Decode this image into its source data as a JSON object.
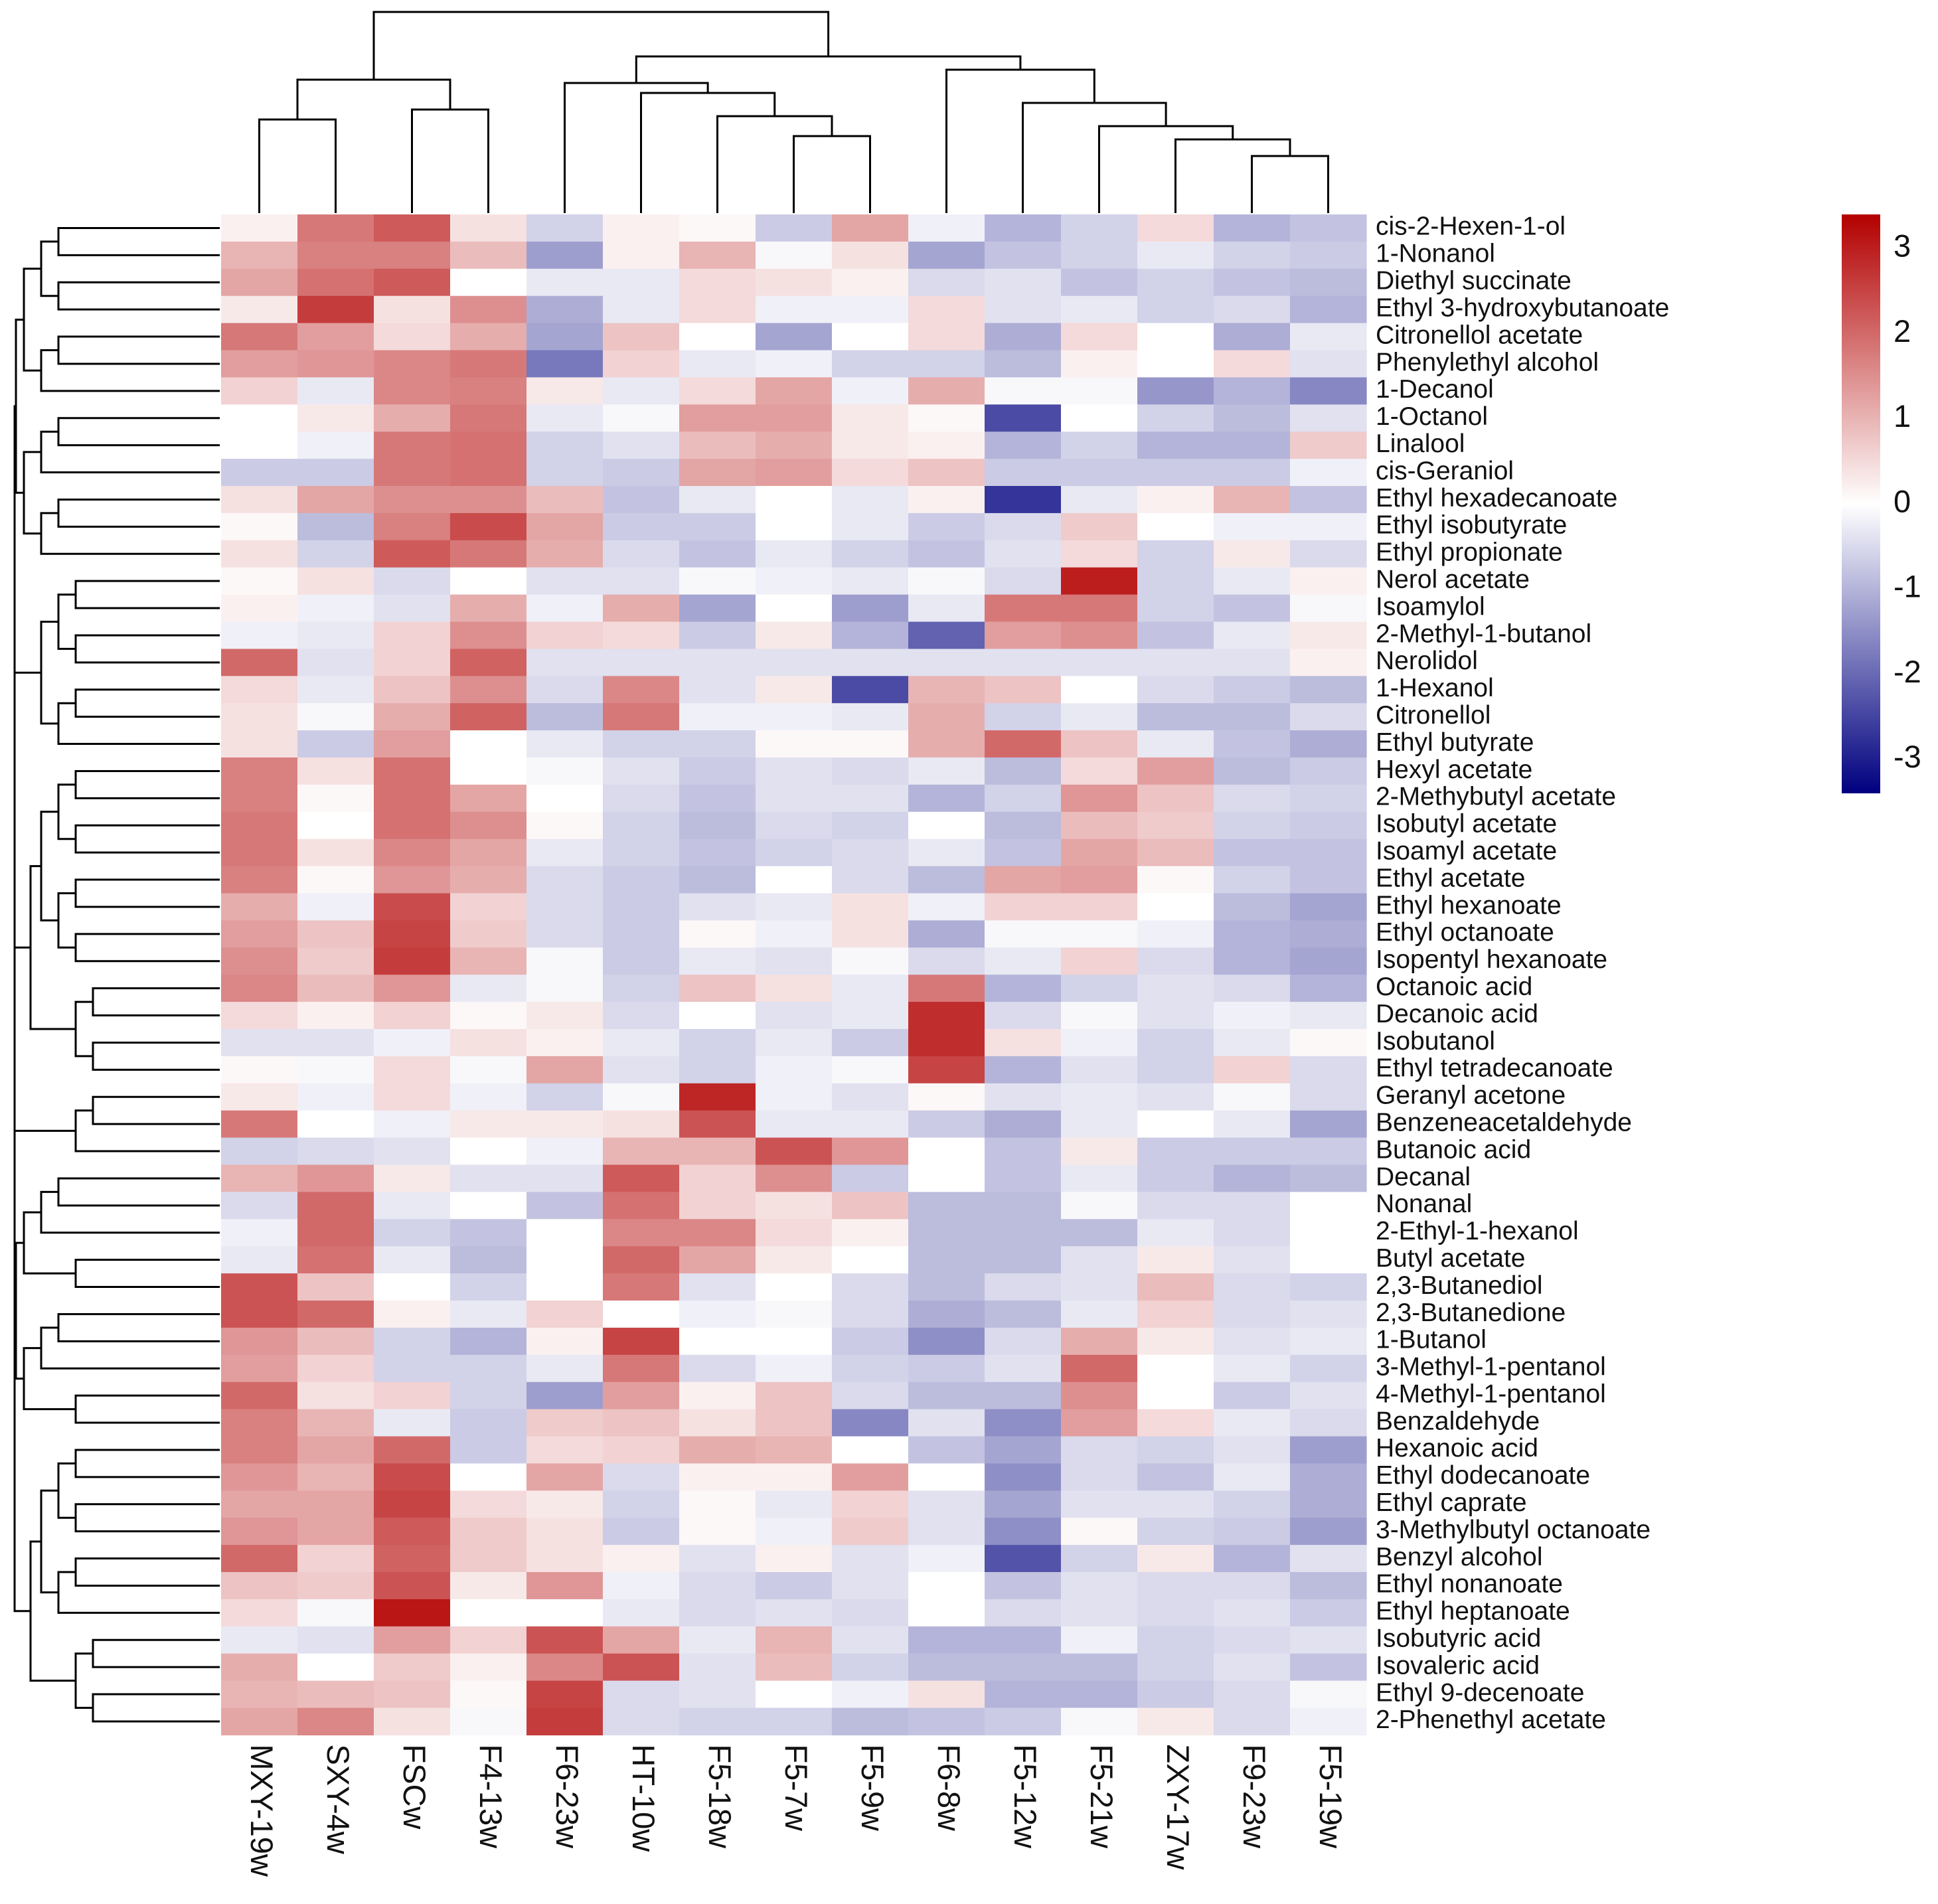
{
  "chart_data": {
    "type": "heatmap",
    "columns": [
      "MXY-19w",
      "SXY-4w",
      "FSCw",
      "F4-13w",
      "F6-23w",
      "HT-10w",
      "F5-18w",
      "F5-7w",
      "F5-9w",
      "F6-8w",
      "F5-12w",
      "F5-21w",
      "ZXY-17w",
      "F9-23w",
      "F5-19w"
    ],
    "rows": [
      "cis-2-Hexen-1-ol",
      "1-Nonanol",
      "Diethyl succinate",
      "Ethyl 3-hydroxybutanoate",
      "Citronellol acetate",
      "Phenylethyl alcohol",
      "1-Decanol",
      "1-Octanol",
      "Linalool",
      "cis-Geraniol",
      "Ethyl hexadecanoate",
      "Ethyl isobutyrate",
      "Ethyl propionate",
      "Nerol acetate",
      "Isoamylol",
      "2-Methyl-1-butanol",
      "Nerolidol",
      "1-Hexanol",
      "Citronellol",
      "Ethyl butyrate",
      "Hexyl acetate",
      "2-Methybutyl acetate",
      "Isobutyl acetate",
      "Isoamyl acetate",
      "Ethyl acetate",
      "Ethyl hexanoate",
      "Ethyl octanoate",
      "Isopentyl hexanoate",
      "Octanoic acid",
      "Decanoic acid",
      "Isobutanol",
      "Ethyl tetradecanoate",
      "Geranyl acetone",
      "Benzeneacetaldehyde",
      "Butanoic acid",
      "Decanal",
      "Nonanal",
      "2-Ethyl-1-hexanol",
      "Butyl acetate",
      "2,3-Butanediol",
      "2,3-Butanedione",
      "1-Butanol",
      "3-Methyl-1-pentanol",
      "4-Methyl-1-pentanol",
      "Benzaldehyde",
      "Hexanoic acid",
      "Ethyl dodecanoate",
      "Ethyl caprate",
      "3-Methylbutyl octanoate",
      "Benzyl alcohol",
      "Ethyl nonanoate",
      "Ethyl heptanoate",
      "Isobutyric acid",
      "Isovaleric acid",
      "Ethyl 9-decenoate",
      "2-Phenethyl acetate"
    ],
    "values": [
      [
        0.2,
        1.8,
        2.2,
        0.4,
        -0.6,
        0.2,
        0.1,
        -0.7,
        1.2,
        -0.2,
        -1.0,
        -0.6,
        0.5,
        -1.0,
        -0.8
      ],
      [
        1.0,
        1.7,
        1.7,
        0.9,
        -1.3,
        0.2,
        1.0,
        -0.1,
        0.4,
        -1.2,
        -0.8,
        -0.6,
        -0.3,
        -0.6,
        -0.7
      ],
      [
        1.2,
        1.9,
        2.2,
        0.0,
        -0.3,
        -0.3,
        0.5,
        0.4,
        0.2,
        -0.5,
        -0.4,
        -0.8,
        -0.6,
        -0.8,
        -0.9
      ],
      [
        0.3,
        2.6,
        0.4,
        1.5,
        -1.1,
        -0.3,
        0.5,
        -0.2,
        -0.2,
        0.5,
        -0.4,
        -0.3,
        -0.6,
        -0.5,
        -1.0
      ],
      [
        1.8,
        1.3,
        0.5,
        1.1,
        -1.2,
        0.8,
        0.0,
        -1.2,
        0.0,
        0.5,
        -1.1,
        0.5,
        0.0,
        -1.1,
        -0.3
      ],
      [
        1.3,
        1.4,
        1.6,
        1.8,
        -1.8,
        0.6,
        -0.3,
        -0.2,
        -0.6,
        -0.6,
        -0.9,
        0.2,
        0.0,
        0.5,
        -0.4
      ],
      [
        0.6,
        -0.3,
        1.6,
        1.7,
        0.3,
        -0.3,
        0.5,
        1.2,
        -0.2,
        1.1,
        -0.1,
        -0.1,
        -1.4,
        -1.0,
        -1.6
      ],
      [
        0.0,
        0.3,
        1.1,
        1.8,
        -0.3,
        -0.1,
        1.3,
        1.3,
        0.3,
        0.1,
        -2.4,
        0.0,
        -0.6,
        -0.9,
        -0.4
      ],
      [
        0.0,
        -0.2,
        1.8,
        1.9,
        -0.6,
        -0.4,
        0.9,
        1.1,
        0.3,
        0.2,
        -1.0,
        -0.6,
        -1.0,
        -1.0,
        0.7
      ],
      [
        -0.7,
        -0.7,
        1.8,
        1.9,
        -0.6,
        -0.7,
        1.2,
        1.3,
        0.5,
        0.8,
        -0.7,
        -0.7,
        -0.7,
        -0.7,
        -0.2
      ],
      [
        0.4,
        1.2,
        1.5,
        1.5,
        0.9,
        -0.8,
        -0.3,
        0.0,
        -0.3,
        0.2,
        -2.7,
        -0.3,
        0.2,
        1.0,
        -0.8
      ],
      [
        0.1,
        -0.9,
        1.7,
        2.4,
        1.2,
        -0.7,
        -0.7,
        0.0,
        -0.3,
        -0.7,
        -0.5,
        0.7,
        0.0,
        -0.2,
        -0.2
      ],
      [
        0.4,
        -0.6,
        2.2,
        1.8,
        1.1,
        -0.5,
        -0.8,
        -0.3,
        -0.6,
        -0.8,
        -0.4,
        0.5,
        -0.6,
        0.3,
        -0.5
      ],
      [
        0.1,
        0.4,
        -0.5,
        0.0,
        -0.4,
        -0.4,
        -0.1,
        -0.2,
        -0.3,
        -0.1,
        -0.5,
        3.0,
        -0.6,
        -0.3,
        0.2
      ],
      [
        0.2,
        -0.2,
        -0.4,
        1.1,
        -0.2,
        1.1,
        -1.2,
        0.0,
        -1.3,
        -0.3,
        1.8,
        1.8,
        -0.6,
        -0.8,
        -0.1
      ],
      [
        -0.2,
        -0.3,
        0.6,
        1.5,
        0.6,
        0.5,
        -0.7,
        0.3,
        -1.0,
        -2.1,
        1.3,
        1.5,
        -0.8,
        -0.3,
        0.3
      ],
      [
        2.0,
        -0.4,
        0.6,
        2.1,
        -0.4,
        -0.4,
        -0.4,
        -0.4,
        -0.4,
        -0.4,
        -0.4,
        -0.4,
        -0.4,
        -0.4,
        0.2
      ],
      [
        0.5,
        -0.3,
        0.8,
        1.5,
        -0.5,
        1.6,
        -0.4,
        0.3,
        -2.4,
        1.0,
        0.8,
        0.0,
        -0.5,
        -0.7,
        -0.9
      ],
      [
        0.4,
        -0.1,
        1.1,
        2.1,
        -0.9,
        1.8,
        -0.2,
        -0.2,
        -0.3,
        1.1,
        -0.6,
        -0.3,
        -0.9,
        -0.9,
        -0.5
      ],
      [
        0.4,
        -0.7,
        1.3,
        0.0,
        -0.3,
        -0.6,
        -0.6,
        0.1,
        0.1,
        1.1,
        2.0,
        0.8,
        -0.3,
        -0.8,
        -1.1
      ],
      [
        1.7,
        0.4,
        1.9,
        0.0,
        -0.1,
        -0.4,
        -0.7,
        -0.4,
        -0.5,
        -0.3,
        -0.9,
        0.5,
        1.3,
        -0.9,
        -0.7
      ],
      [
        1.7,
        0.1,
        1.9,
        1.2,
        0.0,
        -0.5,
        -0.8,
        -0.4,
        -0.4,
        -1.0,
        -0.6,
        1.4,
        0.8,
        -0.5,
        -0.6
      ],
      [
        1.8,
        0.0,
        1.9,
        1.5,
        0.1,
        -0.6,
        -0.9,
        -0.5,
        -0.6,
        0.0,
        -0.9,
        0.9,
        0.7,
        -0.6,
        -0.7
      ],
      [
        1.8,
        0.4,
        1.6,
        1.2,
        -0.3,
        -0.6,
        -0.8,
        -0.6,
        -0.5,
        -0.3,
        -0.8,
        1.2,
        0.9,
        -0.8,
        -0.8
      ],
      [
        1.7,
        0.1,
        1.4,
        1.1,
        -0.5,
        -0.7,
        -0.9,
        0.0,
        -0.5,
        -0.9,
        1.2,
        1.3,
        0.1,
        -0.6,
        -0.8
      ],
      [
        1.1,
        -0.2,
        2.4,
        0.6,
        -0.5,
        -0.7,
        -0.4,
        -0.3,
        0.4,
        -0.2,
        0.6,
        0.6,
        0.0,
        -0.9,
        -1.2
      ],
      [
        1.3,
        0.8,
        2.5,
        0.7,
        -0.5,
        -0.7,
        0.1,
        -0.2,
        0.4,
        -1.1,
        -0.1,
        -0.1,
        -0.2,
        -1.0,
        -1.1
      ],
      [
        1.5,
        0.7,
        2.6,
        1.0,
        -0.1,
        -0.7,
        -0.3,
        -0.4,
        -0.1,
        -0.5,
        -0.3,
        0.6,
        -0.5,
        -1.0,
        -1.2
      ],
      [
        1.6,
        0.9,
        1.4,
        -0.3,
        -0.1,
        -0.6,
        0.8,
        0.4,
        -0.3,
        1.8,
        -1.0,
        -0.6,
        -0.4,
        -0.5,
        -1.0
      ],
      [
        0.5,
        0.2,
        0.6,
        0.1,
        0.3,
        -0.5,
        0.0,
        -0.4,
        -0.3,
        2.8,
        -0.5,
        -0.1,
        -0.4,
        -0.2,
        -0.3
      ],
      [
        -0.4,
        -0.4,
        -0.2,
        0.4,
        0.2,
        -0.3,
        -0.6,
        -0.3,
        -0.7,
        2.8,
        0.4,
        -0.2,
        -0.6,
        -0.3,
        0.1
      ],
      [
        0.1,
        -0.1,
        0.5,
        -0.1,
        1.2,
        -0.4,
        -0.6,
        -0.2,
        -0.1,
        2.5,
        -1.0,
        -0.4,
        -0.6,
        0.6,
        -0.5
      ],
      [
        0.3,
        -0.2,
        0.5,
        -0.2,
        -0.6,
        -0.1,
        2.9,
        -0.2,
        -0.4,
        0.1,
        -0.4,
        -0.3,
        -0.4,
        -0.1,
        -0.5
      ],
      [
        1.8,
        0.0,
        -0.2,
        0.3,
        0.3,
        0.4,
        2.3,
        -0.3,
        -0.3,
        -0.7,
        -1.1,
        -0.3,
        0.0,
        -0.3,
        -1.2
      ],
      [
        -0.6,
        -0.5,
        -0.4,
        0.0,
        -0.2,
        1.0,
        1.0,
        2.3,
        1.4,
        0.0,
        -0.8,
        0.3,
        -0.7,
        -0.7,
        -0.7
      ],
      [
        1.0,
        1.4,
        0.3,
        -0.4,
        -0.4,
        2.2,
        0.6,
        1.5,
        -0.7,
        0.0,
        -0.8,
        -0.3,
        -0.7,
        -1.0,
        -0.9
      ],
      [
        -0.5,
        2.0,
        -0.3,
        0.0,
        -0.8,
        1.9,
        0.6,
        0.4,
        0.8,
        -0.9,
        -0.9,
        -0.1,
        -0.5,
        -0.5,
        0.0
      ],
      [
        -0.2,
        2.0,
        -0.6,
        -0.8,
        0.0,
        1.6,
        1.6,
        0.5,
        0.2,
        -0.9,
        -0.9,
        -0.9,
        -0.3,
        -0.5,
        0.0
      ],
      [
        -0.3,
        1.9,
        -0.3,
        -0.9,
        0.0,
        2.0,
        1.2,
        0.3,
        0.0,
        -0.9,
        -0.9,
        -0.4,
        0.3,
        -0.4,
        0.0
      ],
      [
        2.3,
        0.8,
        0.0,
        -0.6,
        0.0,
        1.8,
        -0.4,
        0.0,
        -0.5,
        -0.9,
        -0.5,
        -0.4,
        0.9,
        -0.5,
        -0.6
      ],
      [
        2.3,
        2.0,
        0.2,
        -0.3,
        0.6,
        0.0,
        -0.2,
        -0.1,
        -0.5,
        -1.1,
        -0.9,
        -0.3,
        0.6,
        -0.5,
        -0.4
      ],
      [
        1.4,
        0.9,
        -0.6,
        -1.0,
        0.2,
        2.5,
        0.0,
        0.0,
        -0.7,
        -1.5,
        -0.5,
        1.1,
        0.3,
        -0.4,
        -0.3
      ],
      [
        1.3,
        0.6,
        -0.6,
        -0.6,
        -0.3,
        1.8,
        -0.5,
        -0.2,
        -0.6,
        -0.7,
        -0.4,
        2.0,
        0.0,
        -0.3,
        -0.6
      ],
      [
        2.0,
        0.4,
        0.6,
        -0.6,
        -1.3,
        1.3,
        0.2,
        0.8,
        -0.5,
        -0.9,
        -0.9,
        1.5,
        0.0,
        -0.7,
        -0.4
      ],
      [
        1.7,
        1.0,
        -0.3,
        -0.7,
        0.7,
        0.8,
        0.4,
        0.8,
        -1.6,
        -0.4,
        -1.5,
        1.3,
        0.5,
        -0.3,
        -0.5
      ],
      [
        1.7,
        1.2,
        2.0,
        -0.7,
        0.5,
        0.6,
        1.1,
        1.0,
        0.0,
        -0.8,
        -1.2,
        -0.5,
        -0.6,
        -0.4,
        -1.3
      ],
      [
        1.4,
        1.0,
        2.4,
        0.0,
        1.2,
        -0.5,
        0.2,
        0.2,
        1.3,
        0.0,
        -1.5,
        -0.5,
        -0.8,
        -0.3,
        -1.1
      ],
      [
        1.2,
        1.2,
        2.5,
        0.5,
        0.3,
        -0.6,
        0.1,
        -0.3,
        0.6,
        -0.4,
        -1.2,
        -0.4,
        -0.4,
        -0.6,
        -1.1
      ],
      [
        1.4,
        1.2,
        2.2,
        0.7,
        0.4,
        -0.7,
        0.1,
        -0.2,
        0.7,
        -0.4,
        -1.5,
        0.1,
        -0.6,
        -0.7,
        -1.3
      ],
      [
        2.0,
        0.6,
        2.1,
        0.7,
        0.4,
        0.2,
        -0.4,
        0.2,
        -0.4,
        -0.2,
        -2.3,
        -0.6,
        0.3,
        -1.0,
        -0.4
      ],
      [
        0.8,
        0.7,
        2.3,
        0.3,
        1.4,
        -0.2,
        -0.5,
        -0.7,
        -0.4,
        0.0,
        -0.8,
        -0.4,
        -0.5,
        -0.5,
        -0.9
      ],
      [
        0.5,
        -0.1,
        3.1,
        0.0,
        0.0,
        -0.3,
        -0.5,
        -0.4,
        -0.5,
        0.0,
        -0.5,
        -0.4,
        -0.5,
        -0.4,
        -0.7
      ],
      [
        -0.3,
        -0.4,
        1.3,
        0.6,
        2.3,
        1.2,
        -0.3,
        1.0,
        -0.4,
        -1.0,
        -1.0,
        -0.2,
        -0.6,
        -0.5,
        -0.4
      ],
      [
        1.1,
        0.0,
        0.7,
        0.2,
        1.6,
        2.3,
        -0.4,
        0.9,
        -0.6,
        -0.9,
        -0.9,
        -0.9,
        -0.6,
        -0.4,
        -0.8
      ],
      [
        1.0,
        0.9,
        0.8,
        0.1,
        2.5,
        -0.5,
        -0.4,
        0.0,
        -0.2,
        0.4,
        -1.0,
        -1.0,
        -0.7,
        -0.5,
        -0.1
      ],
      [
        1.2,
        1.6,
        0.4,
        -0.1,
        2.6,
        -0.5,
        -0.6,
        -0.6,
        -0.9,
        -0.8,
        -0.7,
        -0.1,
        0.3,
        -0.5,
        -0.2
      ]
    ],
    "color_scale": {
      "low": "#000080",
      "mid": "#ffffff",
      "high": "#b30000",
      "range": [
        -3.4,
        3.4
      ]
    },
    "legend": {
      "ticks": [
        3,
        2,
        1,
        0,
        -1,
        -2,
        -3
      ],
      "placement": "top-right"
    },
    "column_dendrogram": true,
    "row_dendrogram": true
  }
}
